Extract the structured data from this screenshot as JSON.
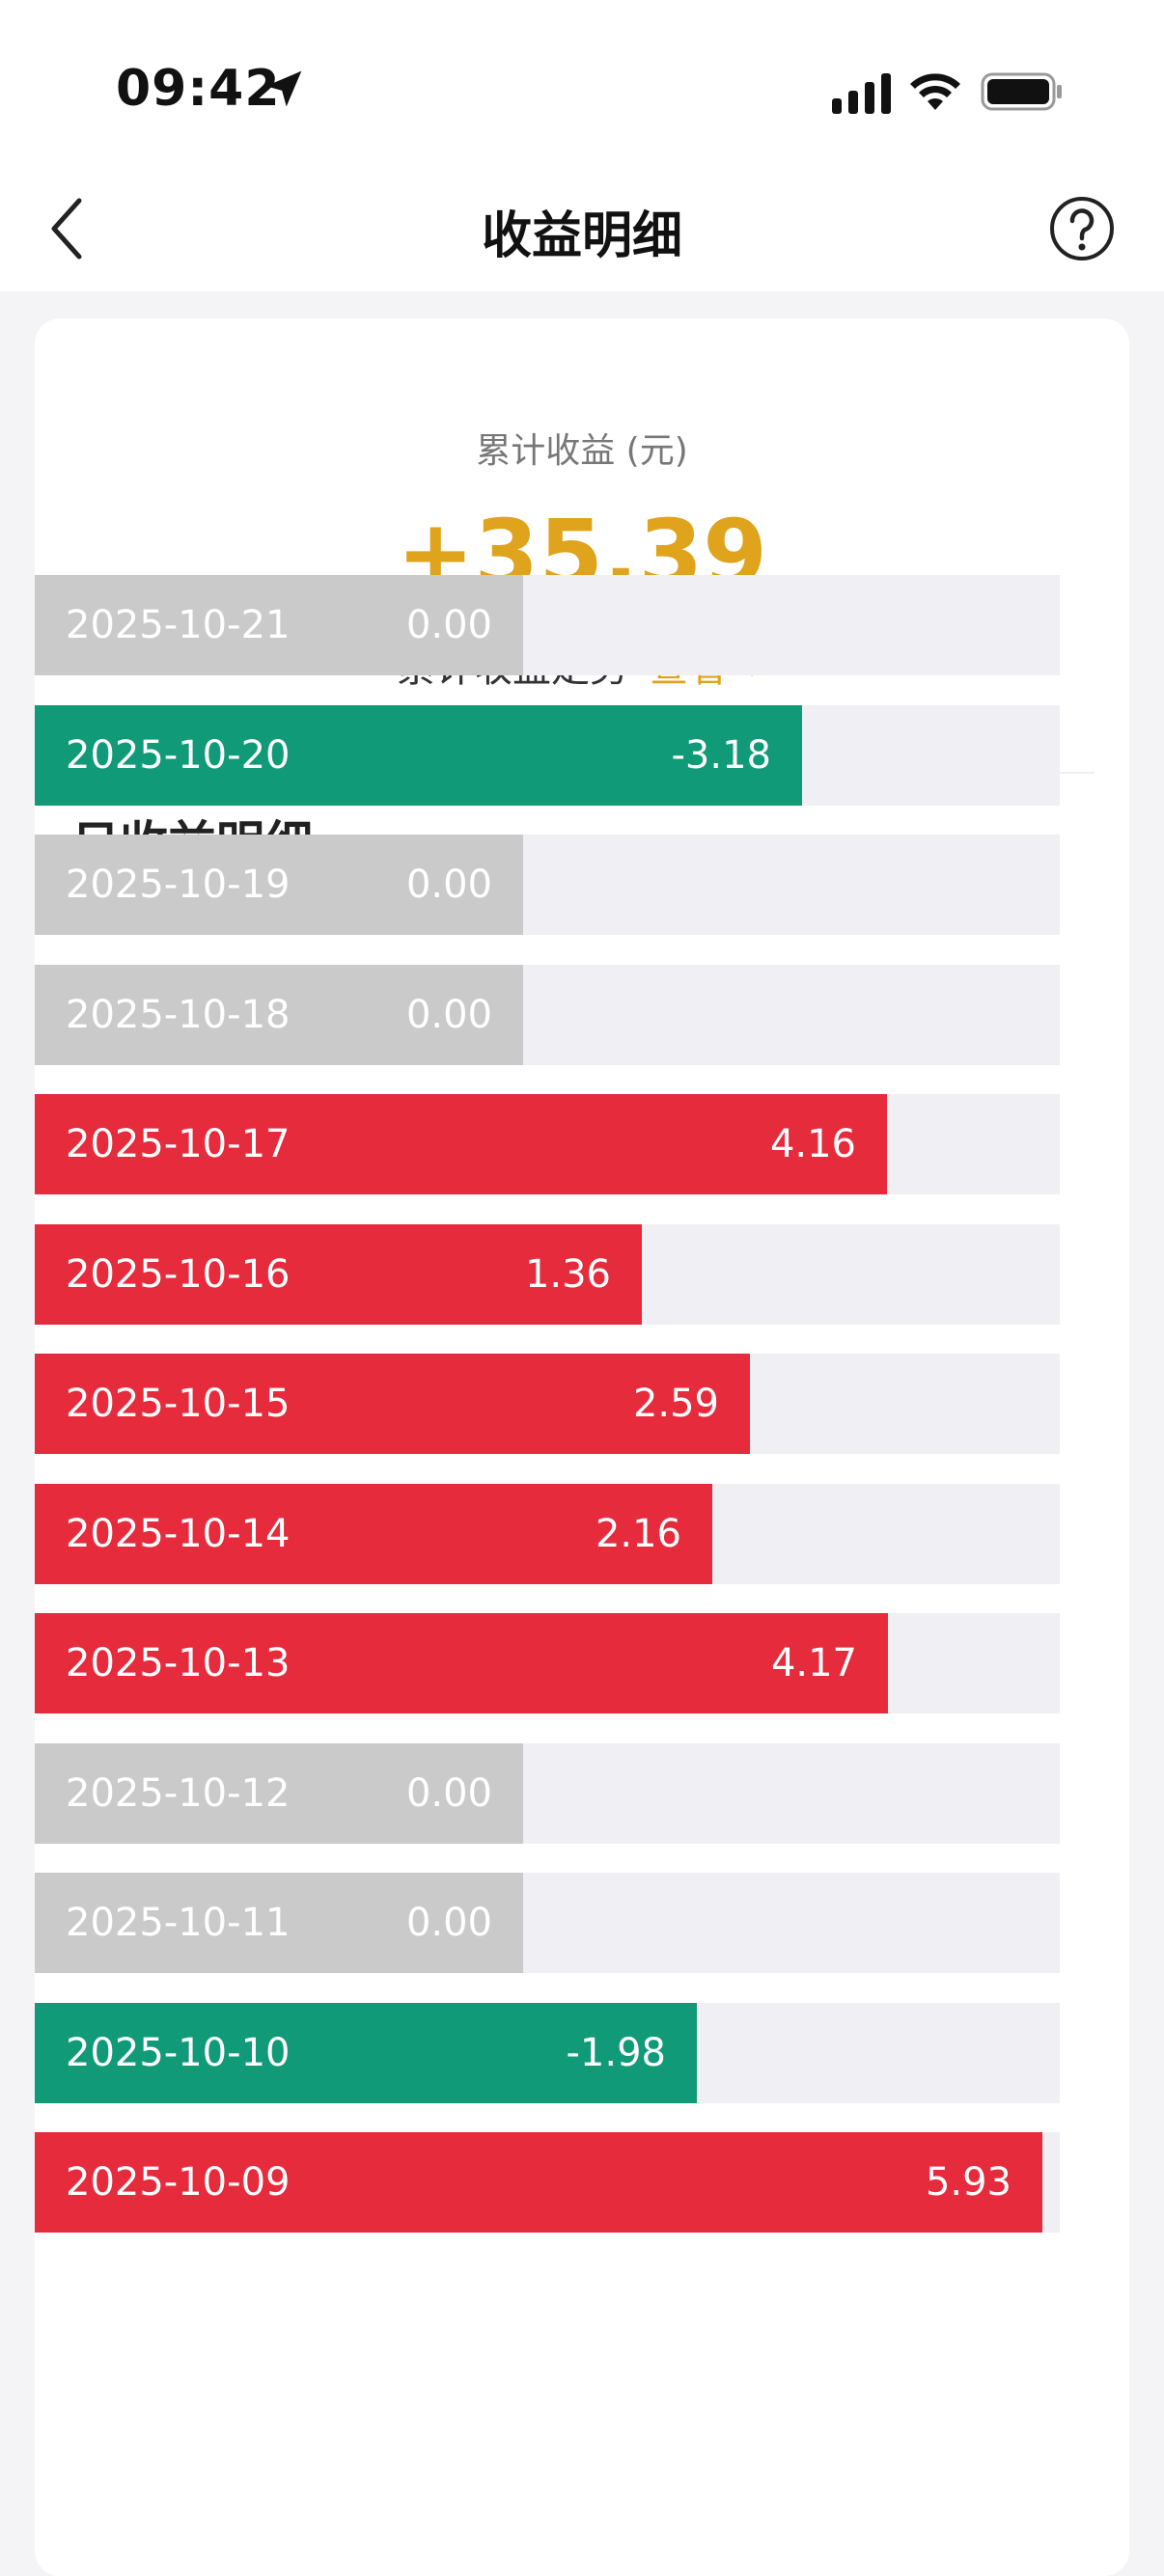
{
  "status": {
    "time": "09:42",
    "icons": [
      "location-arrow-icon",
      "signal-icon",
      "wifi-icon",
      "battery-icon"
    ]
  },
  "nav": {
    "title": "收益明细",
    "icons": [
      "chevron-left-icon",
      "help-icon"
    ]
  },
  "summary": {
    "label": "累计收益 (元)",
    "value": "+35.39",
    "trend_label": "累计收益走势",
    "trend_action": "查看"
  },
  "daily": {
    "title": "日收益明细",
    "items": [
      {
        "date": "2025-10-21",
        "value": "0.00",
        "status": "zero"
      },
      {
        "date": "2025-10-20",
        "value": "-3.18",
        "status": "loss"
      },
      {
        "date": "2025-10-19",
        "value": "0.00",
        "status": "zero"
      },
      {
        "date": "2025-10-18",
        "value": "0.00",
        "status": "zero"
      },
      {
        "date": "2025-10-17",
        "value": "4.16",
        "status": "gain"
      },
      {
        "date": "2025-10-16",
        "value": "1.36",
        "status": "gain"
      },
      {
        "date": "2025-10-15",
        "value": "2.59",
        "status": "gain"
      },
      {
        "date": "2025-10-14",
        "value": "2.16",
        "status": "gain"
      },
      {
        "date": "2025-10-13",
        "value": "4.17",
        "status": "gain"
      },
      {
        "date": "2025-10-12",
        "value": "0.00",
        "status": "zero"
      },
      {
        "date": "2025-10-11",
        "value": "0.00",
        "status": "zero"
      },
      {
        "date": "2025-10-10",
        "value": "-1.98",
        "status": "loss"
      },
      {
        "date": "2025-10-09",
        "value": "5.93",
        "status": "gain"
      }
    ]
  },
  "colors": {
    "accent": "#e0a31c",
    "gain": "#e62b3c",
    "loss": "#109a77",
    "zero": "#cacaca",
    "track": "#f0f0f4"
  }
}
